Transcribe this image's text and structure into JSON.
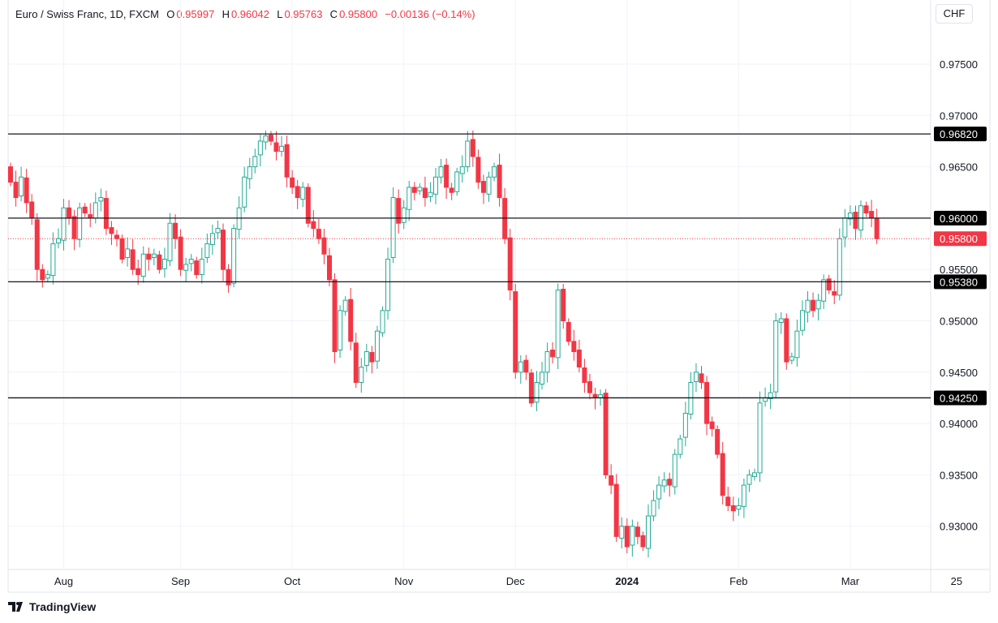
{
  "header": {
    "symbol": "Euro / Swiss Franc, 1D, FXCM",
    "open_label": "O",
    "open": "0.95997",
    "high_label": "H",
    "high": "0.96042",
    "low_label": "L",
    "low": "0.95763",
    "close_label": "C",
    "close": "0.95800",
    "change": "−0.00136 (−0.14%)"
  },
  "currency": "CHF",
  "footer": {
    "brand": "TradingView"
  },
  "colors": {
    "up": "#22ab94",
    "down": "#f23645",
    "level": "#131722"
  },
  "chart_data": {
    "type": "candlestick",
    "title": "Euro / Swiss Franc, 1D, FXCM",
    "ylim": [
      0.926,
      0.979
    ],
    "y_ticks": [
      "0.97500",
      "0.97000",
      "0.96500",
      "0.95500",
      "0.95000",
      "0.94500",
      "0.94000",
      "0.93500",
      "0.93000"
    ],
    "y_tick_values": [
      0.975,
      0.97,
      0.965,
      0.955,
      0.95,
      0.945,
      0.94,
      0.935,
      0.93
    ],
    "x_labels": [
      {
        "text": "Aug",
        "index": 10,
        "bold": false
      },
      {
        "text": "Sep",
        "index": 32,
        "bold": false
      },
      {
        "text": "Oct",
        "index": 53,
        "bold": false
      },
      {
        "text": "Nov",
        "index": 74,
        "bold": false
      },
      {
        "text": "Dec",
        "index": 95,
        "bold": false
      },
      {
        "text": "2024",
        "index": 116,
        "bold": true
      },
      {
        "text": "Feb",
        "index": 137,
        "bold": false
      },
      {
        "text": "Mar",
        "index": 158,
        "bold": false
      },
      {
        "text": "25",
        "index": 178,
        "bold": false
      }
    ],
    "levels": [
      {
        "value": 0.9682,
        "label": "0.96820"
      },
      {
        "value": 0.96,
        "label": "0.96000"
      },
      {
        "value": 0.9538,
        "label": "0.95380"
      },
      {
        "value": 0.9425,
        "label": "0.94250"
      }
    ],
    "last_price": {
      "value": 0.958,
      "label": "0.95800"
    },
    "closes": [
      0.9635,
      0.962,
      0.964,
      0.9615,
      0.96,
      0.955,
      0.954,
      0.9545,
      0.9575,
      0.958,
      0.961,
      0.96,
      0.958,
      0.961,
      0.9605,
      0.96,
      0.9615,
      0.962,
      0.959,
      0.9585,
      0.958,
      0.956,
      0.957,
      0.955,
      0.9545,
      0.9565,
      0.956,
      0.9565,
      0.955,
      0.956,
      0.9595,
      0.958,
      0.955,
      0.9555,
      0.956,
      0.9545,
      0.956,
      0.9575,
      0.9585,
      0.959,
      0.955,
      0.9535,
      0.959,
      0.961,
      0.964,
      0.965,
      0.966,
      0.9675,
      0.968,
      0.9675,
      0.9665,
      0.967,
      0.964,
      0.963,
      0.962,
      0.963,
      0.9595,
      0.959,
      0.958,
      0.9565,
      0.954,
      0.947,
      0.951,
      0.952,
      0.948,
      0.944,
      0.9455,
      0.947,
      0.946,
      0.949,
      0.951,
      0.956,
      0.962,
      0.9595,
      0.961,
      0.963,
      0.9625,
      0.963,
      0.962,
      0.9625,
      0.964,
      0.965,
      0.963,
      0.9625,
      0.9645,
      0.965,
      0.9675,
      0.966,
      0.9635,
      0.9625,
      0.964,
      0.965,
      0.962,
      0.958,
      0.953,
      0.945,
      0.946,
      0.945,
      0.942,
      0.944,
      0.945,
      0.947,
      0.9465,
      0.953,
      0.95,
      0.948,
      0.947,
      0.9455,
      0.944,
      0.943,
      0.9425,
      0.9428,
      0.935,
      0.934,
      0.929,
      0.93,
      0.928,
      0.93,
      0.929,
      0.928,
      0.931,
      0.9325,
      0.934,
      0.9345,
      0.934,
      0.937,
      0.9385,
      0.941,
      0.944,
      0.945,
      0.944,
      0.94,
      0.9395,
      0.937,
      0.933,
      0.932,
      0.9315,
      0.932,
      0.934,
      0.935,
      0.9352,
      0.942,
      0.9425,
      0.943,
      0.95,
      0.9502,
      0.946,
      0.9465,
      0.949,
      0.951,
      0.952,
      0.951,
      0.952,
      0.954,
      0.953,
      0.9525,
      0.958,
      0.96,
      0.9605,
      0.959,
      0.9612,
      0.9605,
      0.96,
      0.958
    ]
  }
}
